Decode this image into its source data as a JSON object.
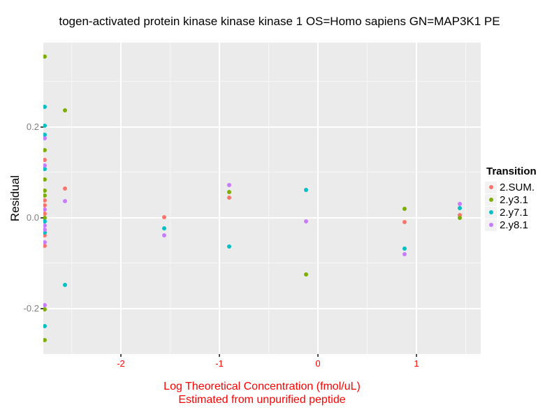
{
  "chart_data": {
    "type": "scatter",
    "title": "togen-activated protein kinase kinase kinase 1 OS=Homo sapiens GN=MAP3K1 PE",
    "ylabel": "Residual",
    "xlabel_line1": "Log Theoretical Concentration (fmol/uL)",
    "xlabel_line2": "Estimated from unpurified peptide",
    "legend_title": "Transition",
    "legend_position": "right",
    "grid": true,
    "xlim": [
      -2.787,
      1.652
    ],
    "ylim": [
      -0.3,
      0.386
    ],
    "x_ticks": [
      {
        "v": -2,
        "label": "-2"
      },
      {
        "v": -1,
        "label": "-1"
      },
      {
        "v": 0,
        "label": "0"
      },
      {
        "v": 1,
        "label": "1"
      }
    ],
    "y_ticks": [
      {
        "v": 0.2,
        "label": "0.2"
      },
      {
        "v": 0.0,
        "label": "0.0"
      },
      {
        "v": -0.2,
        "label": "-0.2"
      }
    ],
    "x_minor": [
      -2.5,
      -1.5,
      -0.5,
      0.5,
      1.5
    ],
    "y_minor": [
      0.3,
      0.1,
      -0.1,
      -0.3
    ],
    "colors": {
      "panel_bg": "#EBEBEB",
      "grid_major": "#FFFFFF",
      "grid_minor": "rgba(255,255,255,0.55)",
      "axis_text_x": "#FF0000",
      "axis_text_y": "#7F7F7F",
      "axis_title_x": "#FF0000",
      "legend_key_bg": "#F2F2F2"
    },
    "series": [
      {
        "name": "2.SUM.",
        "color": "#F8766D",
        "points": [
          [
            -2.77,
            0.127
          ],
          [
            -2.77,
            0.039
          ],
          [
            -2.77,
            0.028
          ],
          [
            -2.77,
            0.009
          ],
          [
            -2.77,
            -0.039
          ],
          [
            -2.77,
            -0.062
          ],
          [
            -2.57,
            0.065
          ],
          [
            -1.56,
            0.002
          ],
          [
            -0.9,
            0.045
          ],
          [
            0.88,
            -0.009
          ],
          [
            1.44,
            0.006
          ]
        ]
      },
      {
        "name": "2.y3.1",
        "color": "#7CAE00",
        "points": [
          [
            -2.77,
            0.356
          ],
          [
            -2.77,
            0.149
          ],
          [
            -2.77,
            0.085
          ],
          [
            -2.77,
            0.06
          ],
          [
            -2.77,
            0.049
          ],
          [
            -2.77,
            0.0
          ],
          [
            -2.77,
            -0.202
          ],
          [
            -2.77,
            -0.269
          ],
          [
            -2.57,
            0.237
          ],
          [
            -0.9,
            0.057
          ],
          [
            -0.12,
            -0.125
          ],
          [
            0.88,
            0.02
          ],
          [
            1.44,
            0.0
          ]
        ]
      },
      {
        "name": "2.y7.1",
        "color": "#00BFC4",
        "points": [
          [
            -2.77,
            0.245
          ],
          [
            -2.77,
            0.203
          ],
          [
            -2.77,
            0.183
          ],
          [
            -2.77,
            0.108
          ],
          [
            -2.77,
            -0.008
          ],
          [
            -2.77,
            -0.032
          ],
          [
            -2.77,
            -0.238
          ],
          [
            -2.57,
            -0.148
          ],
          [
            -1.56,
            -0.023
          ],
          [
            -0.9,
            -0.063
          ],
          [
            -0.12,
            0.062
          ],
          [
            0.88,
            -0.068
          ],
          [
            1.44,
            0.022
          ]
        ]
      },
      {
        "name": "2.y8.1",
        "color": "#C77CFF",
        "points": [
          [
            -2.77,
            0.175
          ],
          [
            -2.77,
            0.115
          ],
          [
            -2.77,
            0.018
          ],
          [
            -2.77,
            -0.017
          ],
          [
            -2.77,
            -0.026
          ],
          [
            -2.77,
            -0.054
          ],
          [
            -2.77,
            -0.192
          ],
          [
            -2.57,
            0.037
          ],
          [
            -1.56,
            -0.038
          ],
          [
            -0.9,
            0.072
          ],
          [
            -0.12,
            -0.007
          ],
          [
            0.88,
            -0.08
          ],
          [
            1.44,
            0.031
          ]
        ]
      }
    ]
  }
}
